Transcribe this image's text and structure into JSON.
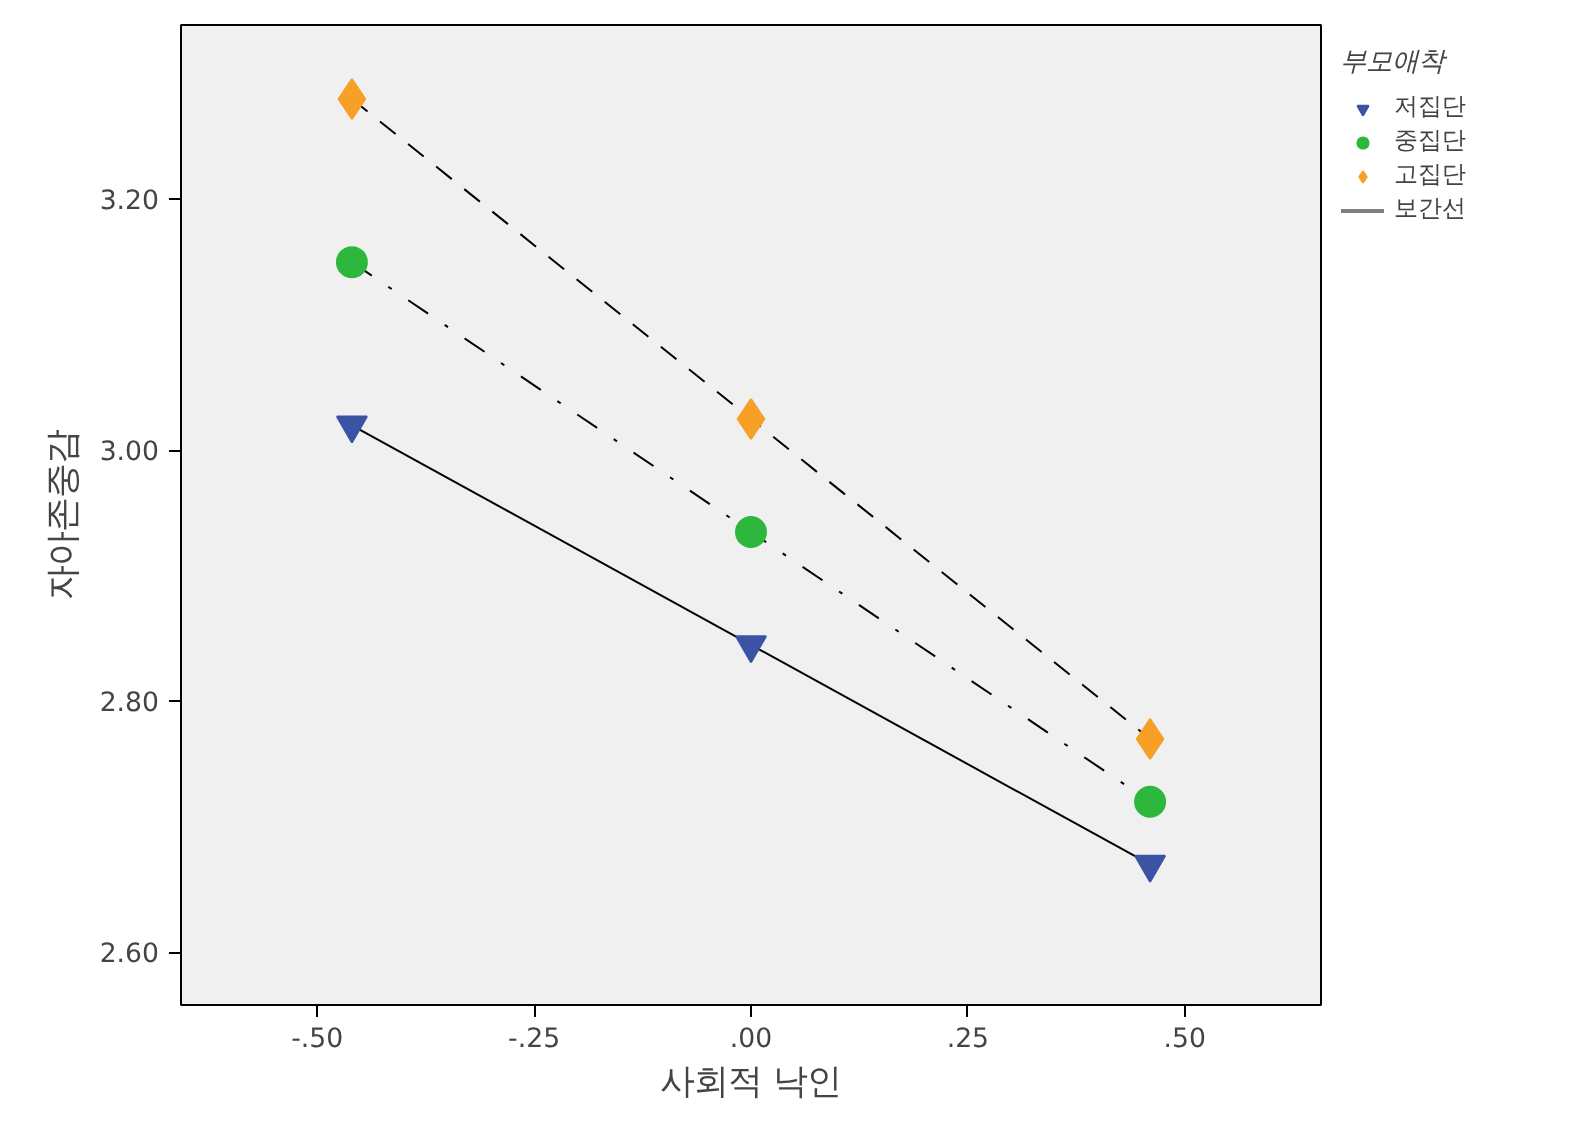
{
  "chart_data": {
    "type": "line",
    "xlabel": "사회적 낙인",
    "ylabel": "자아존중감",
    "legend_title": "부모애착",
    "x": [
      -0.46,
      0,
      0.46
    ],
    "series": [
      {
        "name": "저집단",
        "color": "#3a53a4",
        "values": [
          3.02,
          2.845,
          2.67
        ],
        "marker": "triangle_down",
        "line_style": "solid"
      },
      {
        "name": "중집단",
        "color": "#2db83d",
        "values": [
          3.15,
          2.935,
          2.72
        ],
        "marker": "circle",
        "line_style": "dashdot"
      },
      {
        "name": "고집단",
        "color": "#f7a028",
        "values": [
          3.28,
          3.025,
          2.77
        ],
        "marker": "diamond",
        "line_style": "dashed"
      }
    ],
    "annotations": [
      "보간선"
    ],
    "xlim": [
      -0.657,
      0.657
    ],
    "ylim": [
      2.558,
      3.339
    ],
    "xticks": [
      {
        "value": -0.5,
        "label": "-.50"
      },
      {
        "value": -0.25,
        "label": "-.25"
      },
      {
        "value": 0,
        "label": ".00"
      },
      {
        "value": 0.25,
        "label": ".25"
      },
      {
        "value": 0.5,
        "label": ".50"
      }
    ],
    "yticks": [
      {
        "value": 2.6,
        "label": "2.60"
      },
      {
        "value": 2.8,
        "label": "2.80"
      },
      {
        "value": 3.0,
        "label": "3.00"
      },
      {
        "value": 3.2,
        "label": "3.20"
      }
    ],
    "grid": false,
    "legend": "right"
  }
}
